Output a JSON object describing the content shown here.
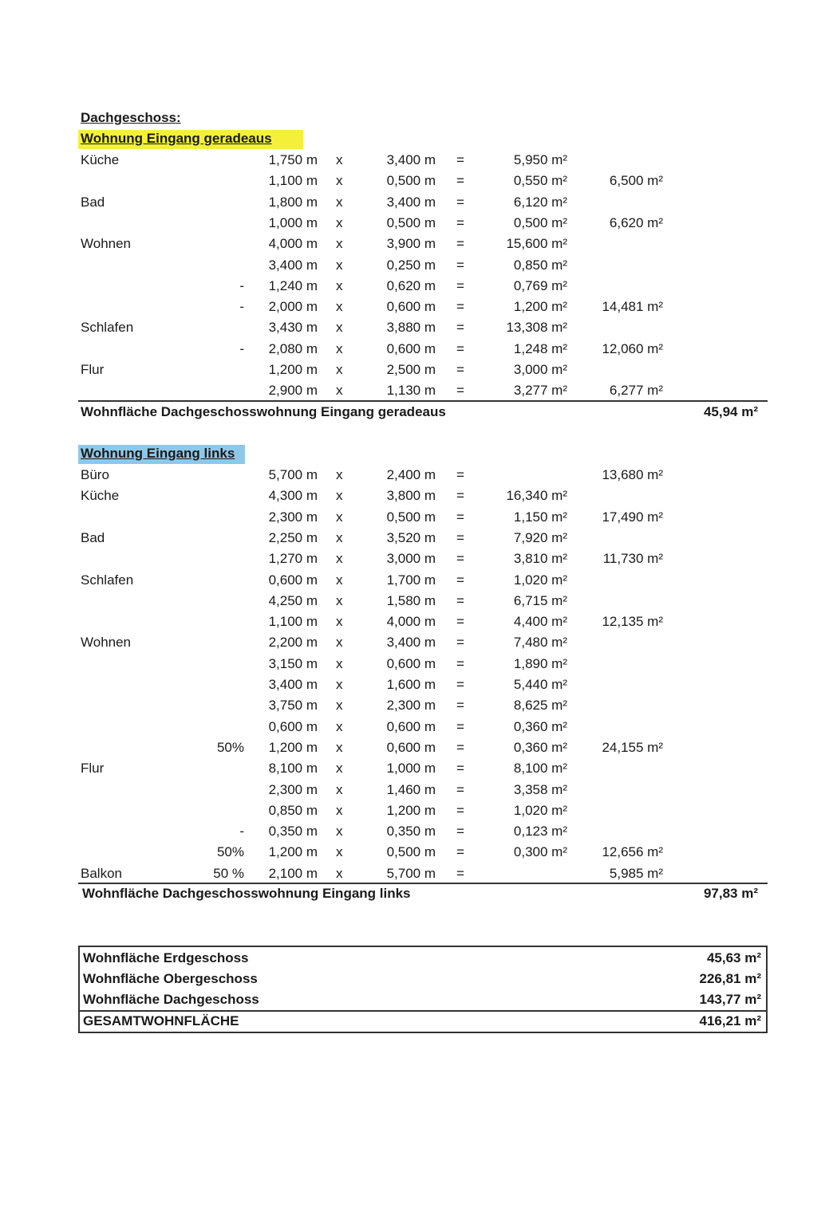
{
  "floor_title": "Dachgeschoss:",
  "colors": {
    "highlight_yellow": "#f4f03a",
    "highlight_blue": "#8ec8e8"
  },
  "sections": [
    {
      "title": "Wohnung Eingang geradeaus",
      "rows": [
        {
          "label": "Küche",
          "prefix": "",
          "a": "1,750 m",
          "op": "x",
          "b": "3,400 m",
          "eq": "=",
          "area": "5,950 m²",
          "subtotal": ""
        },
        {
          "label": "",
          "prefix": "",
          "a": "1,100 m",
          "op": "x",
          "b": "0,500 m",
          "eq": "=",
          "area": "0,550 m²",
          "subtotal": "6,500 m²"
        },
        {
          "label": "Bad",
          "prefix": "",
          "a": "1,800 m",
          "op": "x",
          "b": "3,400 m",
          "eq": "=",
          "area": "6,120 m²",
          "subtotal": ""
        },
        {
          "label": "",
          "prefix": "",
          "a": "1,000 m",
          "op": "x",
          "b": "0,500 m",
          "eq": "=",
          "area": "0,500 m²",
          "subtotal": "6,620 m²"
        },
        {
          "label": "Wohnen",
          "prefix": "",
          "a": "4,000 m",
          "op": "x",
          "b": "3,900 m",
          "eq": "=",
          "area": "15,600 m²",
          "subtotal": ""
        },
        {
          "label": "",
          "prefix": "",
          "a": "3,400 m",
          "op": "x",
          "b": "0,250 m",
          "eq": "=",
          "area": "0,850 m²",
          "subtotal": ""
        },
        {
          "label": "",
          "prefix": "-",
          "a": "1,240 m",
          "op": "x",
          "b": "0,620 m",
          "eq": "=",
          "area": "0,769 m²",
          "subtotal": ""
        },
        {
          "label": "",
          "prefix": "-",
          "a": "2,000 m",
          "op": "x",
          "b": "0,600 m",
          "eq": "=",
          "area": "1,200 m²",
          "subtotal": "14,481 m²"
        },
        {
          "label": "Schlafen",
          "prefix": "",
          "a": "3,430 m",
          "op": "x",
          "b": "3,880 m",
          "eq": "=",
          "area": "13,308 m²",
          "subtotal": ""
        },
        {
          "label": "",
          "prefix": "-",
          "a": "2,080 m",
          "op": "x",
          "b": "0,600 m",
          "eq": "=",
          "area": "1,248 m²",
          "subtotal": "12,060 m²"
        },
        {
          "label": "Flur",
          "prefix": "",
          "a": "1,200 m",
          "op": "x",
          "b": "2,500 m",
          "eq": "=",
          "area": "3,000 m²",
          "subtotal": ""
        },
        {
          "label": "",
          "prefix": "",
          "a": "2,900 m",
          "op": "x",
          "b": "1,130 m",
          "eq": "=",
          "area": "3,277 m²",
          "subtotal": "6,277 m²"
        }
      ],
      "total_label": "Wohnfläche Dachgeschosswohnung Eingang geradeaus",
      "total_value": "45,94 m²"
    },
    {
      "title": "Wohnung Eingang links",
      "rows": [
        {
          "label": "Büro",
          "prefix": "",
          "a": "5,700 m",
          "op": "x",
          "b": "2,400 m",
          "eq": "=",
          "area": "",
          "subtotal": "13,680 m²"
        },
        {
          "label": "Küche",
          "prefix": "",
          "a": "4,300 m",
          "op": "x",
          "b": "3,800 m",
          "eq": "=",
          "area": "16,340 m²",
          "subtotal": ""
        },
        {
          "label": "",
          "prefix": "",
          "a": "2,300 m",
          "op": "x",
          "b": "0,500 m",
          "eq": "=",
          "area": "1,150 m²",
          "subtotal": "17,490 m²"
        },
        {
          "label": "Bad",
          "prefix": "",
          "a": "2,250 m",
          "op": "x",
          "b": "3,520 m",
          "eq": "=",
          "area": "7,920 m²",
          "subtotal": ""
        },
        {
          "label": "",
          "prefix": "",
          "a": "1,270 m",
          "op": "x",
          "b": "3,000 m",
          "eq": "=",
          "area": "3,810 m²",
          "subtotal": "11,730 m²"
        },
        {
          "label": "Schlafen",
          "prefix": "",
          "a": "0,600 m",
          "op": "x",
          "b": "1,700 m",
          "eq": "=",
          "area": "1,020 m²",
          "subtotal": ""
        },
        {
          "label": "",
          "prefix": "",
          "a": "4,250 m",
          "op": "x",
          "b": "1,580 m",
          "eq": "=",
          "area": "6,715 m²",
          "subtotal": ""
        },
        {
          "label": "",
          "prefix": "",
          "a": "1,100 m",
          "op": "x",
          "b": "4,000 m",
          "eq": "=",
          "area": "4,400 m²",
          "subtotal": "12,135 m²"
        },
        {
          "label": "Wohnen",
          "prefix": "",
          "a": "2,200 m",
          "op": "x",
          "b": "3,400 m",
          "eq": "=",
          "area": "7,480 m²",
          "subtotal": ""
        },
        {
          "label": "",
          "prefix": "",
          "a": "3,150 m",
          "op": "x",
          "b": "0,600 m",
          "eq": "=",
          "area": "1,890 m²",
          "subtotal": ""
        },
        {
          "label": "",
          "prefix": "",
          "a": "3,400 m",
          "op": "x",
          "b": "1,600 m",
          "eq": "=",
          "area": "5,440 m²",
          "subtotal": ""
        },
        {
          "label": "",
          "prefix": "",
          "a": "3,750 m",
          "op": "x",
          "b": "2,300 m",
          "eq": "=",
          "area": "8,625 m²",
          "subtotal": ""
        },
        {
          "label": "",
          "prefix": "",
          "a": "0,600 m",
          "op": "x",
          "b": "0,600 m",
          "eq": "=",
          "area": "0,360 m²",
          "subtotal": ""
        },
        {
          "label": "",
          "prefix": "50%",
          "a": "1,200 m",
          "op": "x",
          "b": "0,600 m",
          "eq": "=",
          "area": "0,360 m²",
          "subtotal": "24,155 m²"
        },
        {
          "label": "Flur",
          "prefix": "",
          "a": "8,100 m",
          "op": "x",
          "b": "1,000 m",
          "eq": "=",
          "area": "8,100 m²",
          "subtotal": ""
        },
        {
          "label": "",
          "prefix": "",
          "a": "2,300 m",
          "op": "x",
          "b": "1,460 m",
          "eq": "=",
          "area": "3,358 m²",
          "subtotal": ""
        },
        {
          "label": "",
          "prefix": "",
          "a": "0,850 m",
          "op": "x",
          "b": "1,200 m",
          "eq": "=",
          "area": "1,020 m²",
          "subtotal": ""
        },
        {
          "label": "",
          "prefix": "-",
          "a": "0,350 m",
          "op": "x",
          "b": "0,350 m",
          "eq": "=",
          "area": "0,123 m²",
          "subtotal": ""
        },
        {
          "label": "",
          "prefix": "50%",
          "a": "1,200 m",
          "op": "x",
          "b": "0,500 m",
          "eq": "=",
          "area": "0,300 m²",
          "subtotal": "12,656 m²"
        },
        {
          "label": "Balkon",
          "prefix": "50 %",
          "a": "2,100 m",
          "op": "x",
          "b": "5,700 m",
          "eq": "=",
          "area": "",
          "subtotal": "5,985 m²"
        }
      ],
      "total_label": "Wohnfläche Dachgeschosswohnung Eingang links",
      "total_value": "97,83 m²"
    }
  ],
  "summary": [
    {
      "label": "Wohnfläche Erdgeschoss",
      "value": "45,63 m²"
    },
    {
      "label": "Wohnfläche Obergeschoss",
      "value": "226,81 m²"
    },
    {
      "label": "Wohnfläche Dachgeschoss",
      "value": "143,77 m²"
    },
    {
      "label": "GESAMTWOHNFLÄCHE",
      "value": "416,21 m²"
    }
  ]
}
